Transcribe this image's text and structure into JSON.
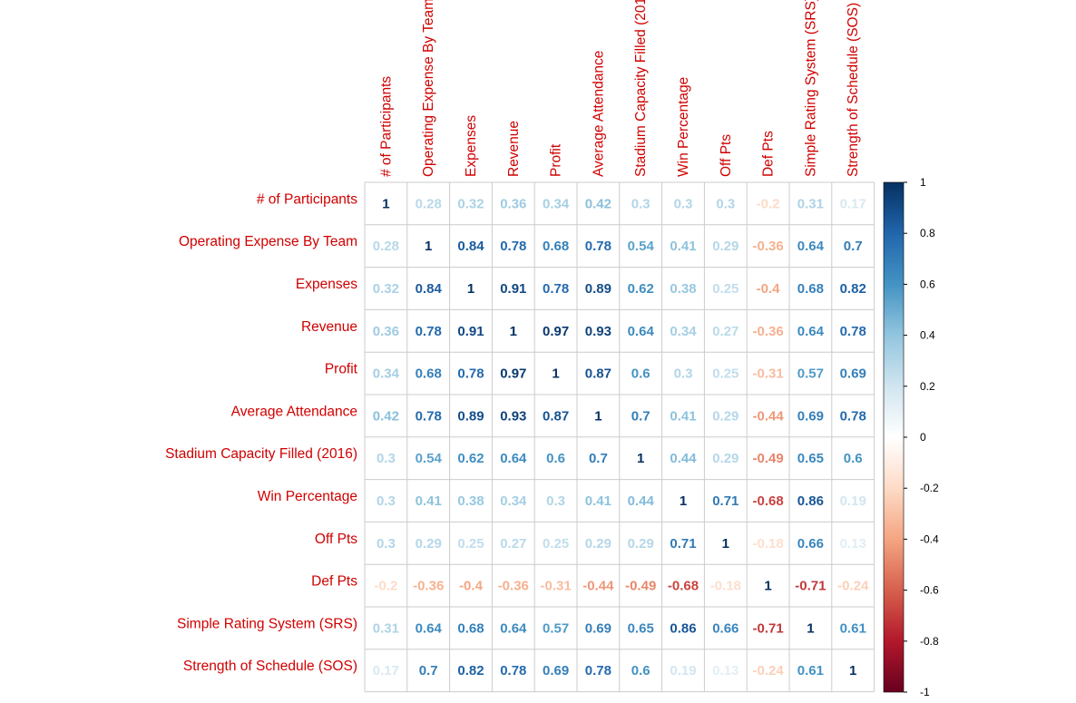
{
  "chart_data": {
    "type": "heatmap",
    "variables": [
      "# of Participants",
      "Operating Expense By Team",
      "Expenses",
      "Revenue",
      "Profit",
      "Average Attendance",
      "Stadium Capacity Filled (2016)",
      "Win Percentage",
      "Off Pts",
      "Def Pts",
      "Simple Rating System (SRS)",
      "Strength of Schedule (SOS)"
    ],
    "matrix": [
      [
        1,
        0.28,
        0.32,
        0.36,
        0.34,
        0.42,
        0.3,
        0.3,
        0.3,
        -0.2,
        0.31,
        0.17
      ],
      [
        0.28,
        1,
        0.84,
        0.78,
        0.68,
        0.78,
        0.54,
        0.41,
        0.29,
        -0.36,
        0.64,
        0.7
      ],
      [
        0.32,
        0.84,
        1,
        0.91,
        0.78,
        0.89,
        0.62,
        0.38,
        0.25,
        -0.4,
        0.68,
        0.82
      ],
      [
        0.36,
        0.78,
        0.91,
        1,
        0.97,
        0.93,
        0.64,
        0.34,
        0.27,
        -0.36,
        0.64,
        0.78
      ],
      [
        0.34,
        0.68,
        0.78,
        0.97,
        1,
        0.87,
        0.6,
        0.3,
        0.25,
        -0.31,
        0.57,
        0.69
      ],
      [
        0.42,
        0.78,
        0.89,
        0.93,
        0.87,
        1,
        0.7,
        0.41,
        0.29,
        -0.44,
        0.69,
        0.78
      ],
      [
        0.3,
        0.54,
        0.62,
        0.64,
        0.6,
        0.7,
        1,
        0.44,
        0.29,
        -0.49,
        0.65,
        0.6
      ],
      [
        0.3,
        0.41,
        0.38,
        0.34,
        0.3,
        0.41,
        0.44,
        1,
        0.71,
        -0.68,
        0.86,
        0.19
      ],
      [
        0.3,
        0.29,
        0.25,
        0.27,
        0.25,
        0.29,
        0.29,
        0.71,
        1,
        -0.18,
        0.66,
        0.13
      ],
      [
        -0.2,
        -0.36,
        -0.4,
        -0.36,
        -0.31,
        -0.44,
        -0.49,
        -0.68,
        -0.18,
        1,
        -0.71,
        -0.24
      ],
      [
        0.31,
        0.64,
        0.68,
        0.64,
        0.57,
        0.69,
        0.65,
        0.86,
        0.66,
        -0.71,
        1,
        0.61
      ],
      [
        0.17,
        0.7,
        0.82,
        0.78,
        0.69,
        0.78,
        0.6,
        0.19,
        0.13,
        -0.24,
        0.61,
        1
      ]
    ],
    "colorbar": {
      "range": [
        -1,
        1
      ],
      "ticks": [
        "1",
        "0.8",
        "0.6",
        "0.4",
        "0.2",
        "0",
        "-0.2",
        "-0.4",
        "-0.6",
        "-0.8",
        "-1"
      ],
      "palette": [
        "#67001f",
        "#b2182b",
        "#d6604d",
        "#f4a582",
        "#fddbc7",
        "#ffffff",
        "#d1e5f0",
        "#92c5de",
        "#4393c3",
        "#2166ac",
        "#053061"
      ]
    },
    "label_color": "#d00000",
    "grid_color": "#cccccc"
  }
}
